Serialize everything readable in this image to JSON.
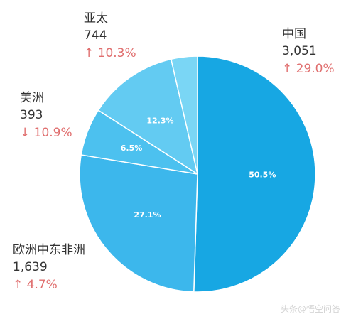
{
  "chart_data": {
    "type": "pie",
    "categories": [
      "中国",
      "欧洲中东非洲",
      "美洲",
      "亚太",
      ""
    ],
    "values": [
      50.5,
      27.1,
      6.5,
      12.3,
      3.6
    ],
    "slice_labels": [
      "50.5%",
      "27.1%",
      "6.5%",
      "12.3%",
      ""
    ],
    "colors": [
      "#17a7e3",
      "#3cb7ec",
      "#4cc1ef",
      "#63cbf2",
      "#7ad6f5"
    ]
  },
  "regions": [
    {
      "name": "中国",
      "value": "3,051",
      "change": "↑ 29.0%"
    },
    {
      "name": "亚太",
      "value": "744",
      "change": "↑ 10.3%"
    },
    {
      "name": "美洲",
      "value": "393",
      "change": "↓ 10.9%"
    },
    {
      "name": "欧洲中东非洲",
      "value": "1,639",
      "change": "↑ 4.7%"
    }
  ],
  "watermark": "头条@悟空问答"
}
